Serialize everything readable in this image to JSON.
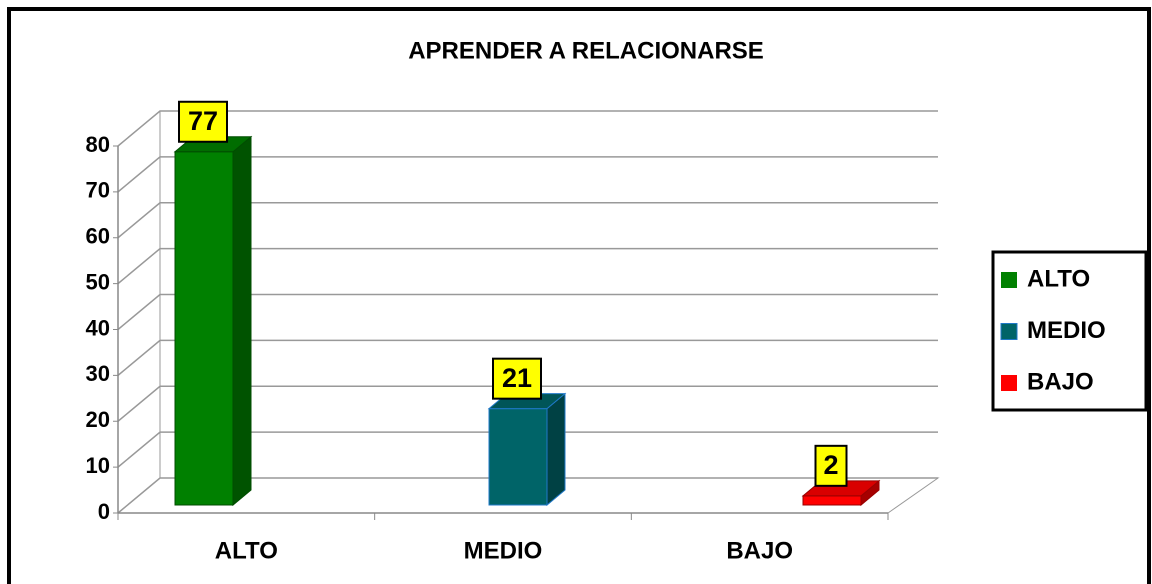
{
  "chart_data": {
    "type": "bar3d",
    "title": "APRENDER A RELACIONARSE",
    "categories": [
      "ALTO",
      "MEDIO",
      "BAJO"
    ],
    "values": [
      77,
      21,
      2
    ],
    "colors": [
      "#008000",
      "#006468",
      "#ff0000"
    ],
    "ylim": [
      0,
      80
    ],
    "yticks": [
      0,
      10,
      20,
      30,
      40,
      50,
      60,
      70,
      80
    ],
    "grid": true,
    "legend": "right"
  }
}
